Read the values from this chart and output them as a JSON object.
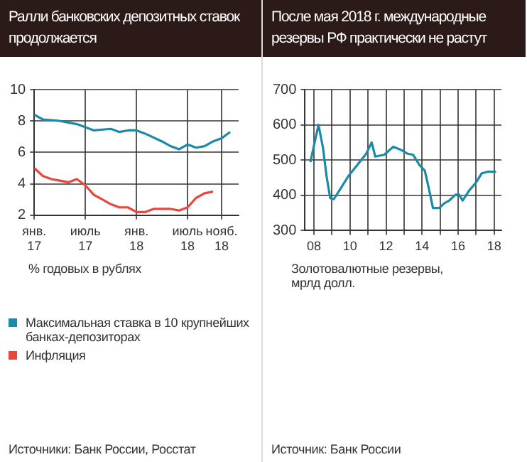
{
  "chart_data": [
    {
      "type": "line",
      "title": "Ралли банковских депозитных ставок продолжается",
      "xlim": [
        "2017-01",
        "2019-01"
      ],
      "xticks": [
        {
          "value": "2017-01",
          "label": "янв.\n17"
        },
        {
          "value": "2017-07",
          "label": "июль\n17"
        },
        {
          "value": "2018-01",
          "label": "янв.\n18"
        },
        {
          "value": "2018-07",
          "label": "июль\n18"
        },
        {
          "value": "2018-11",
          "label": "нояб.\n18"
        }
      ],
      "ylim": [
        2,
        10
      ],
      "yticks": [
        2,
        4,
        6,
        8,
        10
      ],
      "grid": true,
      "legend": "bottom",
      "series": [
        {
          "name": "Максимальная ставка в 10 крупнейших банках-депозиторах",
          "color": "#1b8aa8",
          "x": [
            "2017-01",
            "2017-02",
            "2017-04",
            "2017-05",
            "2017-06",
            "2017-07",
            "2017-08",
            "2017-10",
            "2017-11",
            "2017-12",
            "2018-01",
            "2018-02",
            "2018-04",
            "2018-05",
            "2018-06",
            "2018-07",
            "2018-08",
            "2018-09",
            "2018-10",
            "2018-11",
            "2018-12"
          ],
          "values": [
            8.4,
            8.1,
            8.0,
            7.9,
            7.8,
            7.6,
            7.4,
            7.5,
            7.3,
            7.4,
            7.4,
            7.2,
            6.7,
            6.4,
            6.2,
            6.5,
            6.3,
            6.4,
            6.7,
            6.9,
            7.3
          ]
        },
        {
          "name": "Инфляция",
          "color": "#e8473b",
          "x": [
            "2017-01",
            "2017-02",
            "2017-03",
            "2017-04",
            "2017-05",
            "2017-06",
            "2017-07",
            "2017-08",
            "2017-09",
            "2017-10",
            "2017-11",
            "2017-12",
            "2018-01",
            "2018-02",
            "2018-03",
            "2018-04",
            "2018-05",
            "2018-06",
            "2018-07",
            "2018-08",
            "2018-09",
            "2018-10"
          ],
          "values": [
            5.0,
            4.5,
            4.3,
            4.2,
            4.1,
            4.3,
            3.9,
            3.3,
            3.0,
            2.7,
            2.5,
            2.5,
            2.2,
            2.2,
            2.4,
            2.4,
            2.4,
            2.3,
            2.5,
            3.1,
            3.4,
            3.5
          ]
        }
      ],
      "annotations": [
        "% годовых в рублях",
        "Источники: Банк России, Росстат"
      ]
    },
    {
      "type": "line",
      "title": "После мая 2018 г. международные резервы РФ практически не растут",
      "xlim": [
        2007.5,
        2018.4
      ],
      "xticks": [
        {
          "value": 2008,
          "label": "08"
        },
        {
          "value": 2009,
          "label": null
        },
        {
          "value": 2010,
          "label": "10"
        },
        {
          "value": 2011,
          "label": null
        },
        {
          "value": 2012,
          "label": "12"
        },
        {
          "value": 2013,
          "label": null
        },
        {
          "value": 2014,
          "label": "14"
        },
        {
          "value": 2015,
          "label": null
        },
        {
          "value": 2016,
          "label": "16"
        },
        {
          "value": 2017,
          "label": null
        },
        {
          "value": 2018,
          "label": "18"
        }
      ],
      "ylim": [
        300,
        700
      ],
      "yticks": [
        300,
        400,
        500,
        600,
        700
      ],
      "grid": true,
      "series": [
        {
          "color": "#1b8aa8",
          "x": [
            2007.8,
            2008.25,
            2008.5,
            2008.7,
            2008.9,
            2009.1,
            2009.5,
            2009.9,
            2010.4,
            2010.9,
            2011.2,
            2011.4,
            2011.9,
            2012.4,
            2012.9,
            2013.2,
            2013.5,
            2013.85,
            2014.15,
            2014.4,
            2014.6,
            2014.95,
            2015.2,
            2015.5,
            2015.85,
            2016.05,
            2016.25,
            2016.6,
            2017.0,
            2017.3,
            2017.65,
            2018.1
          ],
          "values": [
            494,
            600,
            535,
            454,
            392,
            389,
            421,
            454,
            486,
            518,
            550,
            510,
            515,
            538,
            527,
            518,
            515,
            486,
            470,
            413,
            364,
            364,
            376,
            385,
            402,
            402,
            385,
            413,
            437,
            462,
            467,
            467
          ]
        }
      ],
      "annotations": [
        "Золотовалютные резервы, мрлд долл.",
        "Источник: Банк России"
      ]
    }
  ]
}
